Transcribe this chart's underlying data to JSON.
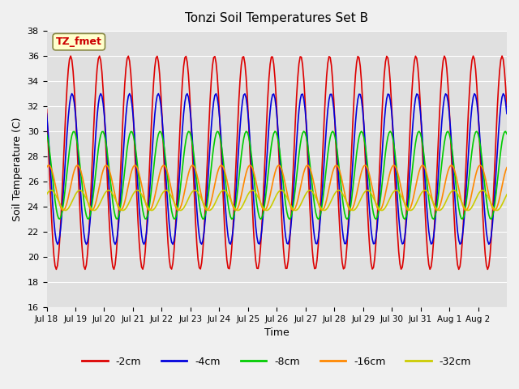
{
  "title": "Tonzi Soil Temperatures Set B",
  "xlabel": "Time",
  "ylabel": "Soil Temperature (C)",
  "ylim": [
    16,
    38
  ],
  "yticks": [
    16,
    18,
    20,
    22,
    24,
    26,
    28,
    30,
    32,
    34,
    36,
    38
  ],
  "fig_bg_color": "#f0f0f0",
  "plot_bg_color": "#e0e0e0",
  "annotation_text": "TZ_fmet",
  "annotation_color": "#cc0000",
  "annotation_bg": "#ffffcc",
  "legend_entries": [
    "-2cm",
    "-4cm",
    "-8cm",
    "-16cm",
    "-32cm"
  ],
  "line_colors": [
    "#dd0000",
    "#0000dd",
    "#00cc00",
    "#ff8800",
    "#cccc00"
  ],
  "num_days": 16,
  "xtick_labels": [
    "Jul 18",
    "Jul 19",
    "Jul 20",
    "Jul 21",
    "Jul 22",
    "Jul 23",
    "Jul 24",
    "Jul 25",
    "Jul 26",
    "Jul 27",
    "Jul 28",
    "Jul 29",
    "Jul 30",
    "Jul 31",
    "Aug 1",
    "Aug 2"
  ],
  "series_params": [
    {
      "mean": 27.5,
      "amp": 8.5,
      "phase": 0.0
    },
    {
      "mean": 27.0,
      "amp": 6.0,
      "phase": 0.3
    },
    {
      "mean": 26.5,
      "amp": 3.5,
      "phase": 0.7
    },
    {
      "mean": 25.5,
      "amp": 1.8,
      "phase": 1.5
    },
    {
      "mean": 24.5,
      "amp": 0.8,
      "phase": 2.0
    }
  ]
}
